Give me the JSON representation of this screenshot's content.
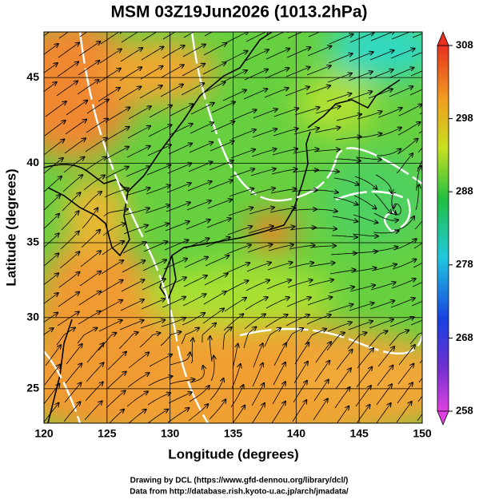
{
  "title": "MSM 03Z19Jun2026 (1013.2hPa)",
  "projection": "mercator",
  "x_axis": {
    "label": "Longitude (degrees)",
    "lim": [
      120,
      150
    ],
    "ticks": [
      120,
      125,
      130,
      135,
      140,
      145,
      150
    ]
  },
  "y_axis": {
    "label": "Latitude  (degrees)",
    "lim": [
      22.5,
      47.5
    ],
    "ticks": [
      25,
      30,
      35,
      40,
      45
    ]
  },
  "colorbar": {
    "lim": [
      258,
      308
    ],
    "ticks": [
      258,
      268,
      278,
      288,
      298,
      308
    ]
  },
  "credits": [
    "Drawing by DCL (https://www.gfd-dennou.org/library/dcl/)",
    "Data from http://database.rish.kyoto-u.ac.jp/arch/jmadata/"
  ]
}
